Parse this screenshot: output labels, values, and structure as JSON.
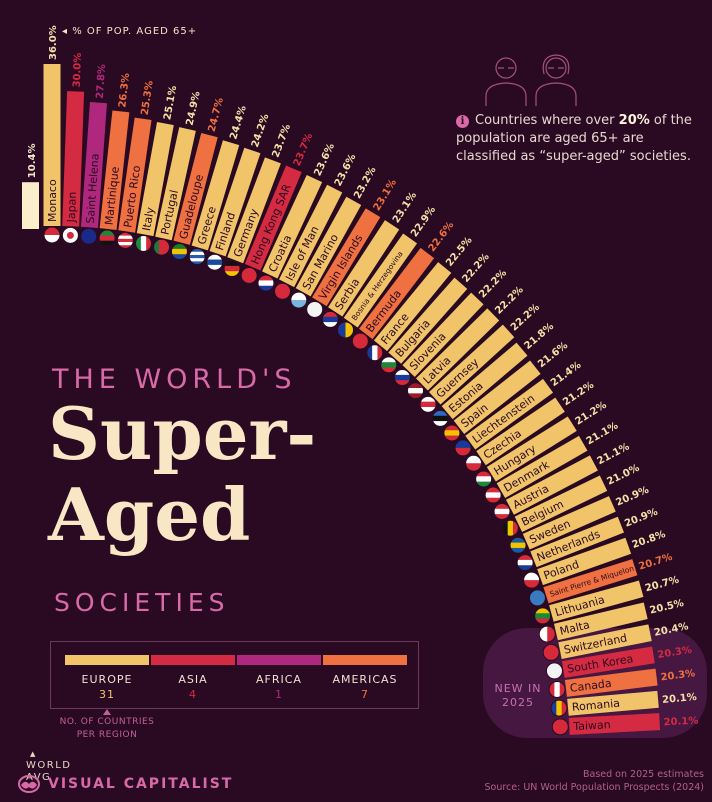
{
  "header": {
    "axis_note": "% OF POP. AGED 65+",
    "world_avg_label_1": "WORLD",
    "world_avg_label_2": "AVG"
  },
  "title": {
    "line1": "THE WORLD'S",
    "line2": "Super-",
    "line3": "Aged",
    "line4": "SOCIETIES"
  },
  "info": {
    "icon": "info-icon",
    "text_before": "Countries where over ",
    "bold": "20%",
    "text_after": " of the population are aged 65+ are classified as “super-aged” societies."
  },
  "legend": {
    "note": "NO. OF COUNTRIES PER REGION",
    "items": [
      {
        "name": "EUROPE",
        "count": "31",
        "color": "#f2c46a"
      },
      {
        "name": "ASIA",
        "count": "4",
        "color": "#d42a42"
      },
      {
        "name": "AFRICA",
        "count": "1",
        "color": "#b0287e"
      },
      {
        "name": "AMERICAS",
        "count": "7",
        "color": "#ef7040"
      }
    ]
  },
  "new_in_2025": {
    "line1": "NEW IN",
    "line2": "2025"
  },
  "footer": {
    "brand": "VISUAL CAPITALIST",
    "note": "Based on 2025 estimates",
    "source": "Source: UN World Population Prospects (2024)"
  },
  "chart_data": {
    "type": "bar",
    "layout": "radial arc",
    "unit": "% of population aged 65+",
    "world_average": {
      "label": "10.4%",
      "value": 10.4,
      "color": "#fbeecb"
    },
    "region_colors": {
      "Europe": "#f2c46a",
      "Asia": "#d42a42",
      "Africa": "#b0287e",
      "Americas": "#ef7040"
    },
    "value_label_colors": {
      "Europe": "#f4e0a8",
      "Asia": "#d42a42",
      "Africa": "#b0287e",
      "Americas": "#ef7040"
    },
    "bars": [
      {
        "country": "Monaco",
        "value": 36.0,
        "label": "36.0%",
        "region": "Europe",
        "flag": [
          "h",
          "#d62a3a",
          "#ffffff"
        ]
      },
      {
        "country": "Japan",
        "value": 30.0,
        "label": "30.0%",
        "region": "Asia",
        "flag": [
          "dot",
          "#ffffff",
          "#d62a3a"
        ]
      },
      {
        "country": "Saint Helena",
        "value": 27.8,
        "label": "27.8%",
        "region": "Africa",
        "flag": [
          "h",
          "#1a2a8a"
        ]
      },
      {
        "country": "Martinique",
        "value": 26.3,
        "label": "26.3%",
        "region": "Americas",
        "flag": [
          "h",
          "#1a8a3a",
          "#d62a3a",
          "#111111"
        ]
      },
      {
        "country": "Puerto Rico",
        "value": 25.3,
        "label": "25.3%",
        "region": "Americas",
        "flag": [
          "h",
          "#d62a3a",
          "#ffffff",
          "#d62a3a",
          "#ffffff",
          "#d62a3a"
        ]
      },
      {
        "country": "Italy",
        "value": 25.1,
        "label": "25.1%",
        "region": "Europe",
        "flag": [
          "v",
          "#1a8a3a",
          "#ffffff",
          "#d62a3a"
        ]
      },
      {
        "country": "Portugal",
        "value": 24.9,
        "label": "24.9%",
        "region": "Europe",
        "flag": [
          "v",
          "#1a7a3a",
          "#d62a3a",
          "#d62a3a"
        ]
      },
      {
        "country": "Guadeloupe",
        "value": 24.7,
        "label": "24.7%",
        "region": "Americas",
        "flag": [
          "h",
          "#1a7a2a",
          "#f2c400",
          "#1a4aa0"
        ]
      },
      {
        "country": "Greece",
        "value": 24.4,
        "label": "24.4%",
        "region": "Europe",
        "flag": [
          "h",
          "#2a5ab0",
          "#ffffff",
          "#2a5ab0",
          "#ffffff",
          "#2a5ab0"
        ]
      },
      {
        "country": "Finland",
        "value": 24.2,
        "label": "24.2%",
        "region": "Europe",
        "flag": [
          "h",
          "#ffffff",
          "#1a4aa0",
          "#ffffff"
        ]
      },
      {
        "country": "Germany",
        "value": 23.7,
        "label": "23.7%",
        "region": "Europe",
        "flag": [
          "h",
          "#111111",
          "#d62a3a",
          "#f2c400"
        ]
      },
      {
        "country": "Hong Kong SAR",
        "value": 23.7,
        "label": "23.7%",
        "region": "Asia",
        "flag": [
          "h",
          "#d62a3a"
        ]
      },
      {
        "country": "Croatia",
        "value": 23.6,
        "label": "23.6%",
        "region": "Europe",
        "flag": [
          "h",
          "#d62a3a",
          "#ffffff",
          "#1a3a9a"
        ]
      },
      {
        "country": "Isle of Man",
        "value": 23.6,
        "label": "23.6%",
        "region": "Europe",
        "flag": [
          "h",
          "#d62a3a"
        ]
      },
      {
        "country": "San Marino",
        "value": 23.2,
        "label": "23.2%",
        "region": "Europe",
        "flag": [
          "h",
          "#ffffff",
          "#7ab4e0"
        ]
      },
      {
        "country": "Virgin Islands",
        "value": 23.1,
        "label": "23.1%",
        "region": "Americas",
        "flag": [
          "h",
          "#f4f4f4"
        ]
      },
      {
        "country": "Serbia",
        "value": 23.1,
        "label": "23.1%",
        "region": "Europe",
        "flag": [
          "h",
          "#d62a3a",
          "#1a3a9a",
          "#ffffff"
        ]
      },
      {
        "country": "Bosnia & Herzegovina",
        "value": 22.9,
        "label": "22.9%",
        "region": "Europe",
        "flag": [
          "v",
          "#1a3a9a",
          "#f2c400"
        ]
      },
      {
        "country": "Bermuda",
        "value": 22.6,
        "label": "22.6%",
        "region": "Americas",
        "flag": [
          "h",
          "#d62a3a"
        ]
      },
      {
        "country": "France",
        "value": 22.5,
        "label": "22.5%",
        "region": "Europe",
        "flag": [
          "v",
          "#1a3a9a",
          "#ffffff",
          "#d62a3a"
        ]
      },
      {
        "country": "Bulgaria",
        "value": 22.2,
        "label": "22.2%",
        "region": "Europe",
        "flag": [
          "h",
          "#ffffff",
          "#1a8a3a",
          "#d62a3a"
        ]
      },
      {
        "country": "Slovenia",
        "value": 22.2,
        "label": "22.2%",
        "region": "Europe",
        "flag": [
          "h",
          "#ffffff",
          "#1a3a9a",
          "#d62a3a"
        ]
      },
      {
        "country": "Latvia",
        "value": 22.2,
        "label": "22.2%",
        "region": "Europe",
        "flag": [
          "h",
          "#9a1a2a",
          "#ffffff",
          "#9a1a2a"
        ]
      },
      {
        "country": "Guernsey",
        "value": 22.2,
        "label": "22.2%",
        "region": "Europe",
        "flag": [
          "h",
          "#ffffff",
          "#d62a3a",
          "#ffffff"
        ]
      },
      {
        "country": "Estonia",
        "value": 21.8,
        "label": "21.8%",
        "region": "Europe",
        "flag": [
          "h",
          "#2a6ac0",
          "#111111",
          "#ffffff"
        ]
      },
      {
        "country": "Spain",
        "value": 21.6,
        "label": "21.6%",
        "region": "Europe",
        "flag": [
          "h",
          "#d62a3a",
          "#f2c400",
          "#d62a3a"
        ]
      },
      {
        "country": "Liechtenstein",
        "value": 21.4,
        "label": "21.4%",
        "region": "Europe",
        "flag": [
          "h",
          "#1a3a9a",
          "#d62a3a"
        ]
      },
      {
        "country": "Czechia",
        "value": 21.2,
        "label": "21.2%",
        "region": "Europe",
        "flag": [
          "h",
          "#ffffff",
          "#d62a3a"
        ]
      },
      {
        "country": "Hungary",
        "value": 21.2,
        "label": "21.2%",
        "region": "Europe",
        "flag": [
          "h",
          "#d62a3a",
          "#ffffff",
          "#1a8a3a"
        ]
      },
      {
        "country": "Denmark",
        "value": 21.1,
        "label": "21.1%",
        "region": "Europe",
        "flag": [
          "h",
          "#d62a3a",
          "#ffffff",
          "#d62a3a"
        ]
      },
      {
        "country": "Austria",
        "value": 21.1,
        "label": "21.1%",
        "region": "Europe",
        "flag": [
          "h",
          "#d62a3a",
          "#ffffff",
          "#d62a3a"
        ]
      },
      {
        "country": "Belgium",
        "value": 21.0,
        "label": "21.0%",
        "region": "Europe",
        "flag": [
          "v",
          "#111111",
          "#f2c400",
          "#d62a3a"
        ]
      },
      {
        "country": "Sweden",
        "value": 20.9,
        "label": "20.9%",
        "region": "Europe",
        "flag": [
          "h",
          "#1a5aa0",
          "#f2c400",
          "#1a5aa0"
        ]
      },
      {
        "country": "Netherlands",
        "value": 20.9,
        "label": "20.9%",
        "region": "Europe",
        "flag": [
          "h",
          "#d62a3a",
          "#ffffff",
          "#1a3a9a"
        ]
      },
      {
        "country": "Poland",
        "value": 20.8,
        "label": "20.8%",
        "region": "Europe",
        "flag": [
          "h",
          "#ffffff",
          "#d62a3a"
        ]
      },
      {
        "country": "Saint Pierre & Miquelon",
        "value": 20.7,
        "label": "20.7%",
        "region": "Americas",
        "flag": [
          "h",
          "#3a7ac0"
        ]
      },
      {
        "country": "Lithuania",
        "value": 20.7,
        "label": "20.7%",
        "region": "Europe",
        "flag": [
          "h",
          "#f2c400",
          "#1a8a3a",
          "#d62a3a"
        ]
      },
      {
        "country": "Malta",
        "value": 20.5,
        "label": "20.5%",
        "region": "Europe",
        "flag": [
          "v",
          "#ffffff",
          "#d62a3a"
        ]
      },
      {
        "country": "Switzerland",
        "value": 20.4,
        "label": "20.4%",
        "region": "Europe",
        "flag": [
          "h",
          "#d62a3a"
        ]
      },
      {
        "country": "South Korea",
        "value": 20.3,
        "label": "20.3%",
        "region": "Asia",
        "flag": [
          "h",
          "#f4f4f4"
        ]
      },
      {
        "country": "Canada",
        "value": 20.3,
        "label": "20.3%",
        "region": "Americas",
        "flag": [
          "v",
          "#d62a3a",
          "#ffffff",
          "#d62a3a"
        ]
      },
      {
        "country": "Romania",
        "value": 20.1,
        "label": "20.1%",
        "region": "Europe",
        "flag": [
          "v",
          "#1a3a9a",
          "#f2c400",
          "#d62a3a"
        ]
      },
      {
        "country": "Taiwan",
        "value": 20.1,
        "label": "20.1%",
        "region": "Asia",
        "flag": [
          "h",
          "#d62a3a"
        ]
      }
    ]
  }
}
